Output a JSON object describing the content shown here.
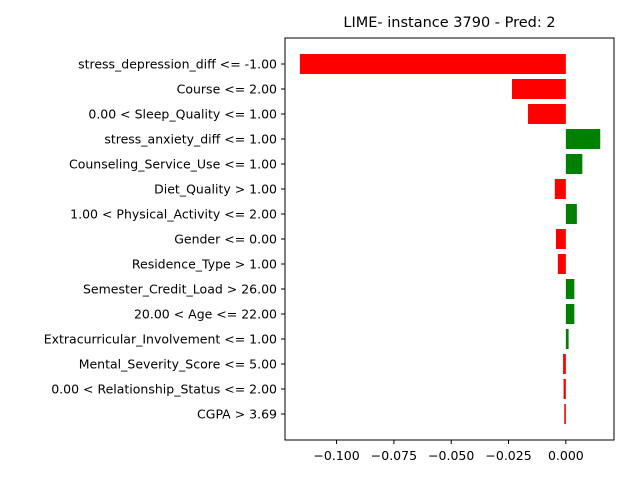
{
  "chart_data": {
    "type": "bar",
    "orientation": "horizontal",
    "title": "LIME- instance 3790 - Pred: 2",
    "xlabel": "",
    "ylabel": "",
    "xlim": [
      -0.1225,
      0.021
    ],
    "xticks": [
      -0.1,
      -0.075,
      -0.05,
      -0.025,
      0.0
    ],
    "xtick_labels": [
      "−0.100",
      "−0.075",
      "−0.050",
      "−0.025",
      "0.000"
    ],
    "grid": false,
    "legend": "none",
    "categories": [
      "stress_depression_diff <= -1.00",
      "Course <= 2.00",
      "0.00 < Sleep_Quality <= 1.00",
      "stress_anxiety_diff <= 1.00",
      "Counseling_Service_Use <= 1.00",
      "Diet_Quality > 1.00",
      "1.00 < Physical_Activity <= 2.00",
      "Gender <= 0.00",
      "Residence_Type > 1.00",
      "Semester_Credit_Load > 26.00",
      "20.00 < Age <= 22.00",
      "Extracurricular_Involvement <= 1.00",
      "Mental_Severity_Score <= 5.00",
      "0.00 < Relationship_Status <= 2.00",
      "CGPA > 3.69"
    ],
    "values": [
      -0.116,
      -0.0235,
      -0.0165,
      0.015,
      0.0072,
      -0.0048,
      0.0048,
      -0.0043,
      -0.0035,
      0.0037,
      0.0037,
      0.0012,
      -0.0012,
      -0.001,
      -0.0007
    ],
    "colors": {
      "positive": "#008000",
      "negative": "#ff0000"
    }
  }
}
